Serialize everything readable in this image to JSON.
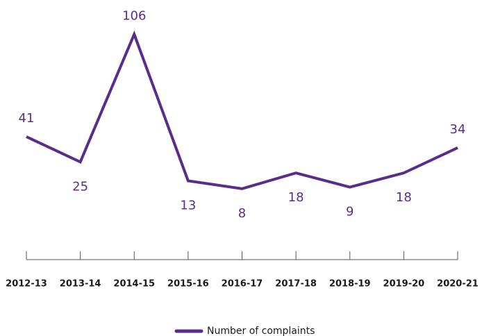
{
  "chart_data": {
    "type": "line",
    "categories": [
      "2012-13",
      "2013-14",
      "2014-15",
      "2015-16",
      "2016-17",
      "2017-18",
      "2018-19",
      "2019-20",
      "2020-21"
    ],
    "series": [
      {
        "name": "Number of complaints",
        "color": "#5a2d8c",
        "values": [
          41,
          25,
          106,
          13,
          8,
          18,
          9,
          18,
          34
        ]
      }
    ]
  }
}
